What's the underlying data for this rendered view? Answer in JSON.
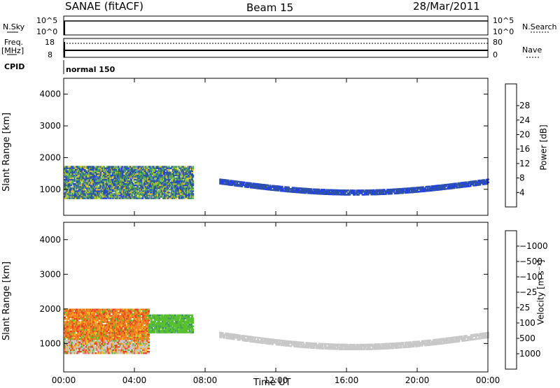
{
  "header": {
    "station": "SANAE (fitACF)",
    "beam": "Beam 15",
    "date": "28/Mar/2011"
  },
  "strip": {
    "nsky_label": "N.Sky",
    "nsky_top": "10^5",
    "nsky_bottom": "10^0",
    "nsearch_label": "N.Search",
    "nsearch_top": "10^5",
    "nsearch_bottom": "10^0",
    "freq_label": "Freq.",
    "freq_unit": "[MHz]",
    "freq_top": "18",
    "freq_bottom": "8",
    "nave_label": "Nave",
    "nave_top": "80",
    "nave_bottom": "0",
    "cpid_label": "CPID",
    "cpid_value": "normal 150"
  },
  "chart_data": [
    {
      "type": "heatmap",
      "title": "",
      "xlabel": "",
      "ylabel": "Slant Range [km]",
      "x_ticks": [
        "00:00",
        "04:00",
        "08:00",
        "12:00",
        "16:00",
        "20:00",
        "00:00"
      ],
      "y_ticks": [
        1000,
        2000,
        3000,
        4000
      ],
      "xlim_hours": [
        0,
        24
      ],
      "ylim": [
        180,
        4500
      ],
      "colorbar": {
        "label": "Power [dB]",
        "ticks": [
          "4",
          "8",
          "12",
          "16",
          "20",
          "24",
          "28"
        ],
        "colors": [
          "#1f3cff",
          "#2f52a8",
          "#3f8f6a",
          "#58b050",
          "#a8d040",
          "#e8c020",
          "#f0a020",
          "#f07020",
          "#e83020",
          "#d00000"
        ]
      },
      "echo_bands": [
        {
          "h0": 0.0,
          "h1": 7.3,
          "r0": 700,
          "r1": 1700,
          "level": "mixed"
        },
        {
          "h0": 8.8,
          "h1": 24.0,
          "r0": 800,
          "r1": 1400,
          "level": "low"
        }
      ]
    },
    {
      "type": "heatmap",
      "title": "",
      "xlabel": "Time UT",
      "ylabel": "Slant Range [km]",
      "x_ticks": [
        "00:00",
        "04:00",
        "08:00",
        "12:00",
        "16:00",
        "20:00",
        "00:00"
      ],
      "y_ticks": [
        1000,
        2000,
        3000,
        4000
      ],
      "xlim_hours": [
        0,
        24
      ],
      "ylim": [
        180,
        4500
      ],
      "colorbar": {
        "label": "Velocity [m s⁻¹]",
        "ticks": [
          "1000",
          "500",
          "100",
          "25",
          "−25",
          "−100",
          "−500",
          "−1000"
        ],
        "colors": [
          "#1f3cff",
          "#2f52a8",
          "#3f8f6a",
          "#58c030",
          "#c8c8c8",
          "#f0c020",
          "#f08020",
          "#e84020",
          "#d00000"
        ]
      },
      "echo_bands": [
        {
          "h0": 0.0,
          "h1": 4.8,
          "r0": 700,
          "r1": 2000,
          "level": "neg"
        },
        {
          "h0": 4.8,
          "h1": 7.3,
          "r0": 1300,
          "r1": 1800,
          "level": "pos"
        },
        {
          "h0": 8.8,
          "h1": 24.0,
          "r0": 800,
          "r1": 1400,
          "level": "ground"
        }
      ]
    }
  ]
}
